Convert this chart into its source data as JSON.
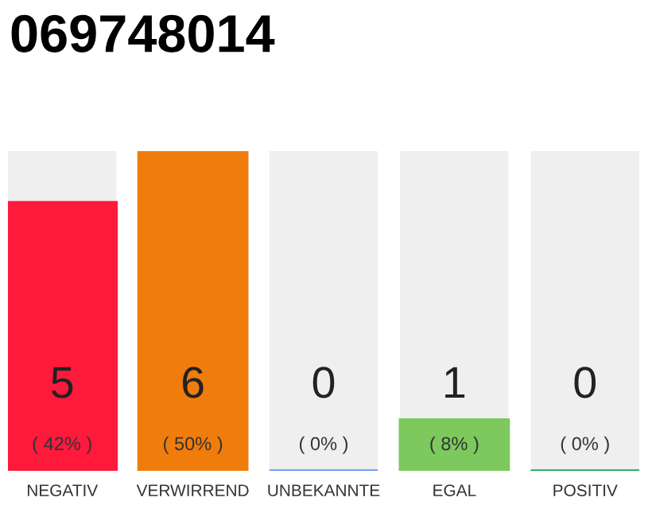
{
  "chart_data": {
    "type": "bar",
    "title": "069748014",
    "categories": [
      "NEGATIV",
      "VERWIRREND",
      "UNBEKANNTE",
      "EGAL",
      "POSITIV"
    ],
    "values": [
      42,
      50,
      0,
      8,
      0
    ],
    "colors": [
      "#ff1a3c",
      "#f07c0c",
      "#6495ed",
      "#7dc95e",
      "#1aa64a"
    ],
    "value_labels": [
      "( 42% )",
      "( 50% )",
      "( 0% )",
      "( 8% )",
      "( 0% )"
    ],
    "annotations": [
      "5",
      "6",
      "0",
      "1",
      "0"
    ],
    "grid": false,
    "legend": false
  }
}
